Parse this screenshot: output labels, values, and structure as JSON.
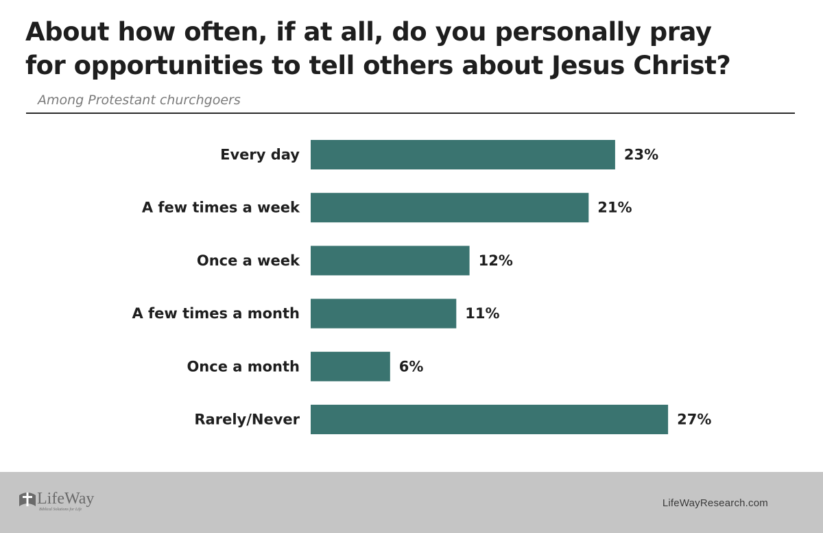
{
  "header": {
    "title_line1": "About how often, if at all, do you personally pray",
    "title_line2": "for opportunities to tell others about Jesus Christ?",
    "subtitle": "Among Protestant churchgoers"
  },
  "chart_data": {
    "type": "bar",
    "orientation": "horizontal",
    "categories": [
      "Every day",
      "A few times a week",
      "Once a week",
      "A few times a month",
      "Once a month",
      "Rarely/Never"
    ],
    "values": [
      23,
      21,
      12,
      11,
      6,
      27
    ],
    "value_labels": [
      "23%",
      "21%",
      "12%",
      "11%",
      "6%",
      "27%"
    ],
    "title": "About how often, if at all, do you personally pray for opportunities to tell others about Jesus Christ?",
    "subtitle": "Among Protestant churchgoers",
    "unit": "%",
    "bar_color": "#3a7470",
    "grid": false,
    "legend": "none"
  },
  "footer": {
    "logo_text": "LifeWay",
    "logo_tagline": "Biblical Solutions for Life",
    "logo_icon": "lifeway-cross-icon",
    "site": "LifeWayResearch.com"
  }
}
